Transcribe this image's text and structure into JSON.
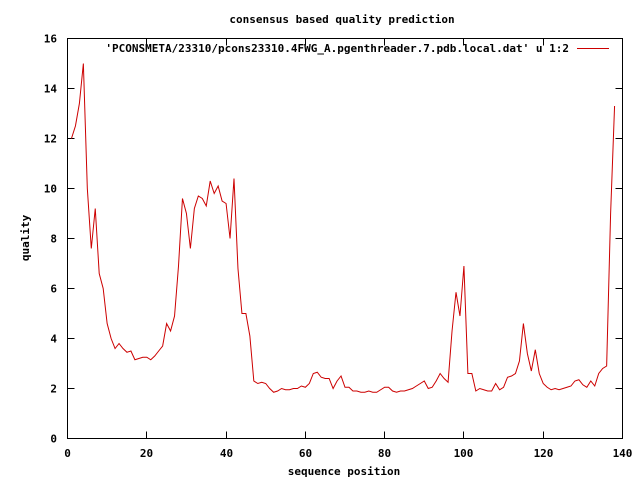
{
  "chart_data": {
    "type": "line",
    "title": "consensus based quality prediction",
    "xlabel": "sequence position",
    "ylabel": "quality",
    "xlim": [
      0,
      140
    ],
    "ylim": [
      0,
      16
    ],
    "xticks": [
      0,
      20,
      40,
      60,
      80,
      100,
      120,
      140
    ],
    "yticks": [
      0,
      2,
      4,
      6,
      8,
      10,
      12,
      14,
      16
    ],
    "grid": false,
    "legend_position": "top-right",
    "series": [
      {
        "name": "'PCONSMETA/23310/pcons23310.4FWG_A.pgenthreader.7.pdb.local.dat' u 1:2",
        "color": "#cc0000",
        "x": [
          1,
          2,
          3,
          4,
          5,
          6,
          7,
          8,
          9,
          10,
          11,
          12,
          13,
          14,
          15,
          16,
          17,
          18,
          19,
          20,
          21,
          22,
          23,
          24,
          25,
          26,
          27,
          28,
          29,
          30,
          31,
          32,
          33,
          34,
          35,
          36,
          37,
          38,
          39,
          40,
          41,
          42,
          43,
          44,
          45,
          46,
          47,
          48,
          49,
          50,
          51,
          52,
          53,
          54,
          55,
          56,
          57,
          58,
          59,
          60,
          61,
          62,
          63,
          64,
          65,
          66,
          67,
          68,
          69,
          70,
          71,
          72,
          73,
          74,
          75,
          76,
          77,
          78,
          79,
          80,
          81,
          82,
          83,
          84,
          85,
          86,
          87,
          88,
          89,
          90,
          91,
          92,
          93,
          94,
          95,
          96,
          97,
          98,
          99,
          100,
          101,
          102,
          103,
          104,
          105,
          106,
          107,
          108,
          109,
          110,
          111,
          112,
          113,
          114,
          115,
          116,
          117,
          118,
          119,
          120,
          121,
          122,
          123,
          124,
          125,
          126,
          127,
          128,
          129,
          130,
          131,
          132,
          133,
          134,
          135,
          136,
          137,
          138
        ],
        "y": [
          12.0,
          12.5,
          13.4,
          15.0,
          10.0,
          7.6,
          9.2,
          6.6,
          6.0,
          4.6,
          4.0,
          3.6,
          3.8,
          3.6,
          3.45,
          3.5,
          3.15,
          3.2,
          3.25,
          3.25,
          3.15,
          3.3,
          3.5,
          3.7,
          4.6,
          4.3,
          4.9,
          6.9,
          9.6,
          9.0,
          7.6,
          9.2,
          9.7,
          9.6,
          9.3,
          10.3,
          9.8,
          10.1,
          9.5,
          9.4,
          8.0,
          10.4,
          6.8,
          5.0,
          5.0,
          4.1,
          2.3,
          2.2,
          2.25,
          2.2,
          2.0,
          1.85,
          1.9,
          2.0,
          1.95,
          1.95,
          2.0,
          2.0,
          2.1,
          2.05,
          2.2,
          2.6,
          2.65,
          2.45,
          2.4,
          2.4,
          2.0,
          2.3,
          2.5,
          2.05,
          2.05,
          1.9,
          1.9,
          1.85,
          1.85,
          1.9,
          1.85,
          1.85,
          1.95,
          2.05,
          2.05,
          1.9,
          1.85,
          1.9,
          1.9,
          1.95,
          2.0,
          2.1,
          2.2,
          2.3,
          2.0,
          2.05,
          2.3,
          2.6,
          2.4,
          2.25,
          4.3,
          5.85,
          4.9,
          6.9,
          2.6,
          2.6,
          1.9,
          2.0,
          1.95,
          1.9,
          1.9,
          2.2,
          1.95,
          2.05,
          2.45,
          2.5,
          2.6,
          3.1,
          4.6,
          3.4,
          2.7,
          3.55,
          2.6,
          2.2,
          2.05,
          1.95,
          2.0,
          1.95,
          2.0,
          2.05,
          2.1,
          2.3,
          2.35,
          2.15,
          2.05,
          2.3,
          2.1,
          2.6,
          2.8,
          2.9,
          9.0,
          13.3
        ]
      }
    ]
  }
}
